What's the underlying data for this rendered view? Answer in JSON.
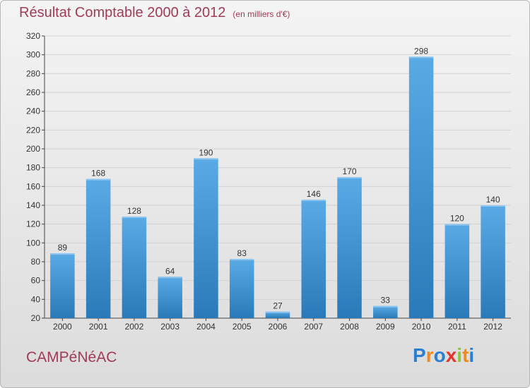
{
  "header": {
    "title": "Résultat Comptable 2000 à 2012",
    "subtitle": "(en milliers d'€)"
  },
  "commune": "CAMPéNéAC",
  "logo": {
    "text": "Proxiti",
    "letters": [
      {
        "ch": "P",
        "color": "#2a7fd3"
      },
      {
        "ch": "r",
        "color": "#f08a1d"
      },
      {
        "ch": "o",
        "color": "#2a7fd3"
      },
      {
        "ch": "x",
        "color": "#e8332a"
      },
      {
        "ch": "i",
        "color": "#8cc63f"
      },
      {
        "ch": "t",
        "color": "#f08a1d"
      },
      {
        "ch": "i",
        "color": "#2a7fd3"
      }
    ]
  },
  "colors": {
    "title": "#a33a55",
    "bar_top": "#5aaae6",
    "bar_bottom": "#2a7ab9",
    "grid": "#d2d2d2",
    "axis": "#444444",
    "text": "#333333"
  },
  "chart_data": {
    "type": "bar",
    "title": "Résultat Comptable 2000 à 2012",
    "subtitle": "(en milliers d'€)",
    "xlabel": "",
    "ylabel": "",
    "categories": [
      "2000",
      "2001",
      "2002",
      "2003",
      "2004",
      "2005",
      "2006",
      "2007",
      "2008",
      "2009",
      "2010",
      "2011",
      "2012"
    ],
    "values": [
      89,
      168,
      128,
      64,
      190,
      83,
      27,
      146,
      170,
      33,
      298,
      120,
      140
    ],
    "ylim": [
      20,
      320
    ],
    "yticks": [
      20,
      40,
      60,
      80,
      100,
      120,
      140,
      160,
      180,
      200,
      220,
      240,
      260,
      280,
      300,
      320
    ],
    "grid": true,
    "data_labels": true
  }
}
